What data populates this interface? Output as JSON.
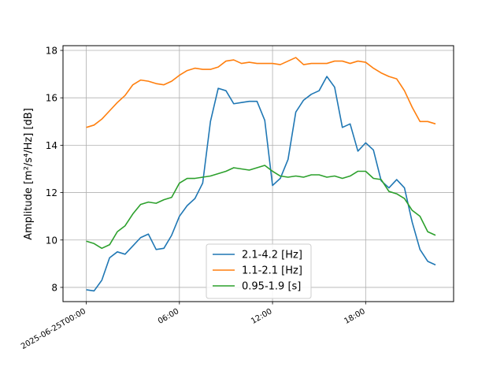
{
  "chart_data": {
    "type": "line",
    "xlabel": "",
    "ylabel": "Amplitude [m²/s⁴/Hz] [dB]",
    "ylim": [
      7.4,
      18.2
    ],
    "xlim": [
      "2025-06-24T22:30:00",
      "2025-06-25T23:40:00"
    ],
    "x_tick_labels": [
      "2025-06-25T00:00",
      "06:00",
      "12:00",
      "18:00"
    ],
    "y_tick_labels": [
      "8",
      "10",
      "12",
      "14",
      "16",
      "18"
    ],
    "grid": true,
    "legend_position": "bottom-center",
    "x": [
      "00:00",
      "00:30",
      "01:00",
      "01:30",
      "02:00",
      "02:30",
      "03:00",
      "03:30",
      "04:00",
      "04:30",
      "05:00",
      "05:30",
      "06:00",
      "06:30",
      "07:00",
      "07:30",
      "08:00",
      "08:30",
      "09:00",
      "09:30",
      "10:00",
      "10:30",
      "11:00",
      "11:30",
      "12:00",
      "12:30",
      "13:00",
      "13:30",
      "14:00",
      "14:30",
      "15:00",
      "15:30",
      "16:00",
      "16:30",
      "17:00",
      "17:30",
      "18:00",
      "18:30",
      "19:00",
      "19:30",
      "20:00",
      "20:30",
      "21:00",
      "21:30",
      "22:00",
      "22:30"
    ],
    "series": [
      {
        "name": "2.1-4.2 [Hz]",
        "color": "#1f77b4",
        "values": [
          7.9,
          7.85,
          8.3,
          9.25,
          9.5,
          9.4,
          9.75,
          10.1,
          10.25,
          9.6,
          9.65,
          10.2,
          11.0,
          11.45,
          11.75,
          12.4,
          15.0,
          16.4,
          16.3,
          15.75,
          15.8,
          15.85,
          15.85,
          15.05,
          12.3,
          12.6,
          13.4,
          15.4,
          15.9,
          16.15,
          16.3,
          16.9,
          16.45,
          14.75,
          14.9,
          13.75,
          14.1,
          13.8,
          12.5,
          12.2,
          12.55,
          12.2,
          10.75,
          9.6,
          9.1,
          8.95
        ]
      },
      {
        "name": "1.1-2.1 [Hz]",
        "color": "#ff7f0e",
        "values": [
          14.75,
          14.85,
          15.1,
          15.45,
          15.8,
          16.1,
          16.55,
          16.75,
          16.7,
          16.6,
          16.55,
          16.7,
          16.95,
          17.15,
          17.25,
          17.2,
          17.2,
          17.3,
          17.55,
          17.6,
          17.45,
          17.5,
          17.45,
          17.45,
          17.45,
          17.4,
          17.55,
          17.7,
          17.4,
          17.45,
          17.45,
          17.45,
          17.55,
          17.55,
          17.45,
          17.55,
          17.5,
          17.25,
          17.05,
          16.9,
          16.8,
          16.3,
          15.6,
          15.0,
          15.0,
          14.9
        ]
      },
      {
        "name": "0.95-1.9 [s]",
        "color": "#2ca02c",
        "values": [
          9.95,
          9.85,
          9.65,
          9.8,
          10.35,
          10.6,
          11.1,
          11.5,
          11.6,
          11.55,
          11.7,
          11.8,
          12.4,
          12.6,
          12.6,
          12.65,
          12.7,
          12.8,
          12.9,
          13.05,
          13.0,
          12.95,
          13.05,
          13.15,
          12.9,
          12.7,
          12.65,
          12.7,
          12.65,
          12.75,
          12.75,
          12.65,
          12.7,
          12.6,
          12.7,
          12.9,
          12.9,
          12.6,
          12.55,
          12.05,
          11.95,
          11.75,
          11.25,
          11.0,
          10.35,
          10.2
        ]
      }
    ]
  }
}
